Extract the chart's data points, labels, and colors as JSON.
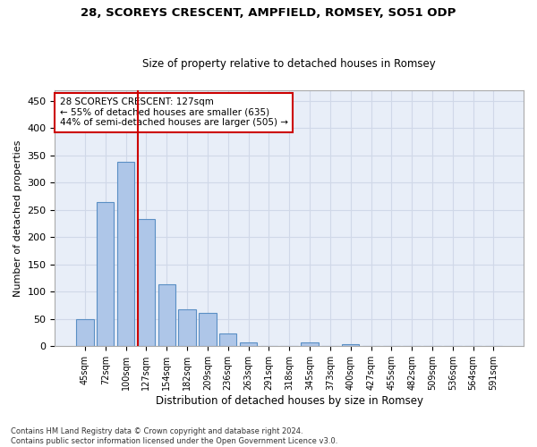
{
  "title1": "28, SCOREYS CRESCENT, AMPFIELD, ROMSEY, SO51 ODP",
  "title2": "Size of property relative to detached houses in Romsey",
  "xlabel": "Distribution of detached houses by size in Romsey",
  "ylabel": "Number of detached properties",
  "bin_labels": [
    "45sqm",
    "72sqm",
    "100sqm",
    "127sqm",
    "154sqm",
    "182sqm",
    "209sqm",
    "236sqm",
    "263sqm",
    "291sqm",
    "318sqm",
    "345sqm",
    "373sqm",
    "400sqm",
    "427sqm",
    "455sqm",
    "482sqm",
    "509sqm",
    "536sqm",
    "564sqm",
    "591sqm"
  ],
  "bar_values": [
    50,
    265,
    338,
    233,
    113,
    67,
    61,
    24,
    7,
    0,
    0,
    7,
    0,
    4,
    0,
    0,
    0,
    0,
    0,
    0,
    0
  ],
  "bar_color": "#aec6e8",
  "bar_edge_color": "#5a8fc4",
  "vline_color": "#cc0000",
  "annotation_text": "28 SCOREYS CRESCENT: 127sqm\n← 55% of detached houses are smaller (635)\n44% of semi-detached houses are larger (505) →",
  "annotation_box_color": "#ffffff",
  "annotation_box_edge": "#cc0000",
  "grid_color": "#d0d8e8",
  "bg_color": "#e8eef8",
  "footer1": "Contains HM Land Registry data © Crown copyright and database right 2024.",
  "footer2": "Contains public sector information licensed under the Open Government Licence v3.0.",
  "ylim": [
    0,
    470
  ],
  "yticks": [
    0,
    50,
    100,
    150,
    200,
    250,
    300,
    350,
    400,
    450
  ]
}
